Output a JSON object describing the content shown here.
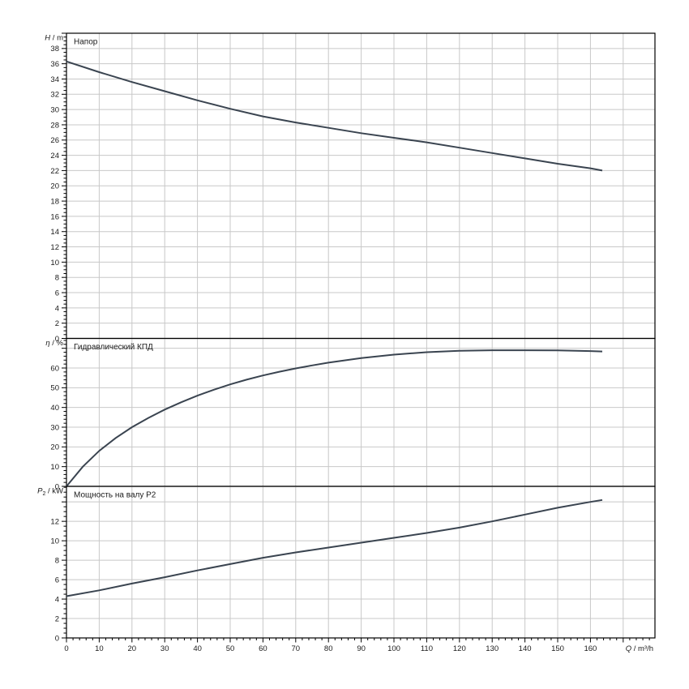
{
  "page": {
    "background": "#ffffff"
  },
  "colors": {
    "curve": "#3a4450",
    "grid": "#c8c8c8",
    "axis": "#000000",
    "text": "#1a1a1a"
  },
  "x_axis": {
    "label": {
      "symbol": "Q",
      "sub": "",
      "unit": "m³/h"
    },
    "min": 0,
    "max": 179.7,
    "major_step": 10,
    "minor_step": 2,
    "label_step": 10,
    "label_max": 160
  },
  "chart_data": [
    {
      "type": "line",
      "title": "Напор",
      "ylabel": {
        "symbol": "H",
        "sub": "",
        "unit": "m"
      },
      "ymin": 0,
      "ymax": 40,
      "label_step": 2,
      "minor_step": 0.5,
      "label_max": 38,
      "x": [
        0,
        10,
        20,
        30,
        40,
        50,
        60,
        70,
        80,
        90,
        100,
        110,
        120,
        130,
        140,
        150,
        160,
        163.6
      ],
      "y": [
        36.3,
        34.9,
        33.6,
        32.4,
        31.2,
        30.1,
        29.1,
        28.3,
        27.6,
        26.9,
        26.3,
        25.7,
        25.0,
        24.3,
        23.6,
        22.9,
        22.3,
        22.0
      ]
    },
    {
      "type": "line",
      "title": "Гидравлический КПД",
      "ylabel": {
        "symbol": "η",
        "sub": "",
        "unit": "%"
      },
      "ymin": 0,
      "ymax": 75,
      "label_step": 10,
      "minor_step": 2,
      "label_max": 60,
      "x": [
        0,
        5,
        10,
        15,
        20,
        25,
        30,
        35,
        40,
        45,
        50,
        55,
        60,
        65,
        70,
        75,
        80,
        90,
        100,
        110,
        120,
        130,
        140,
        150,
        160,
        163.6
      ],
      "y": [
        0,
        10,
        18,
        24.5,
        30,
        34.7,
        38.9,
        42.6,
        46,
        49,
        51.7,
        54.1,
        56.2,
        58.1,
        59.8,
        61.3,
        62.7,
        65,
        66.8,
        68,
        68.7,
        69,
        69,
        68.9,
        68.6,
        68.4
      ]
    },
    {
      "type": "line",
      "title": "Мощность на валу P2",
      "ylabel": {
        "symbol": "P",
        "sub": "2",
        "unit": "kW"
      },
      "ymin": 0,
      "ymax": 15.6,
      "label_step": 2,
      "minor_step": 0.5,
      "label_max": 12,
      "x": [
        0,
        10,
        20,
        30,
        40,
        50,
        60,
        70,
        80,
        90,
        100,
        110,
        120,
        130,
        140,
        150,
        160,
        163.6
      ],
      "y": [
        4.3,
        4.9,
        5.6,
        6.25,
        6.95,
        7.6,
        8.25,
        8.8,
        9.3,
        9.8,
        10.3,
        10.8,
        11.35,
        12.0,
        12.7,
        13.4,
        14.0,
        14.2
      ]
    }
  ]
}
